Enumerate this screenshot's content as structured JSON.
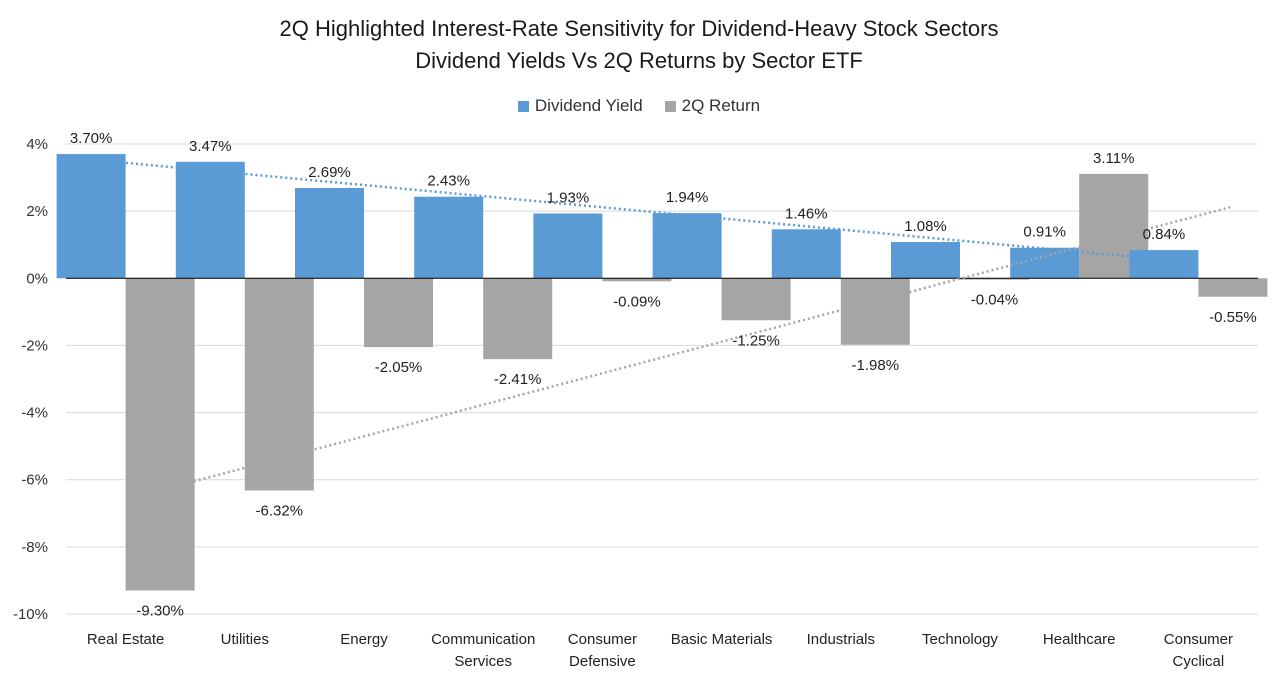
{
  "colors": {
    "dividend": "#5B9BD5",
    "return": "#A5A5A5",
    "grid": "#D9D9D9",
    "axis": "#000000"
  },
  "chart_data": {
    "type": "bar",
    "title": "2Q Highlighted Interest-Rate Sensitivity for Dividend-Heavy Stock Sectors",
    "subtitle": "Dividend Yields Vs 2Q Returns by Sector ETF",
    "categories": [
      [
        "Real Estate"
      ],
      [
        "Utilities"
      ],
      [
        "Energy"
      ],
      [
        "Communication",
        "Services"
      ],
      [
        "Consumer",
        "Defensive"
      ],
      [
        "Basic Materials"
      ],
      [
        "Industrials"
      ],
      [
        "Technology"
      ],
      [
        "Healthcare"
      ],
      [
        "Consumer",
        "Cyclical"
      ]
    ],
    "series": [
      {
        "name": "Dividend Yield",
        "color": "#5B9BD5",
        "values": [
          3.7,
          3.47,
          2.69,
          2.43,
          1.93,
          1.94,
          1.46,
          1.08,
          0.91,
          0.84
        ],
        "labels": [
          "3.70%",
          "3.47%",
          "2.69%",
          "2.43%",
          "1.93%",
          "1.94%",
          "1.46%",
          "1.08%",
          "0.91%",
          "0.84%"
        ]
      },
      {
        "name": "2Q Return",
        "color": "#A5A5A5",
        "values": [
          -9.3,
          -6.32,
          -2.05,
          -2.41,
          -0.09,
          -1.25,
          -1.98,
          -0.04,
          3.11,
          -0.55
        ],
        "labels": [
          "-9.30%",
          "-6.32%",
          "-2.05%",
          "-2.41%",
          "-0.09%",
          "-1.25%",
          "-1.98%",
          "-0.04%",
          "3.11%",
          "-0.55%"
        ]
      }
    ],
    "y_ticks": [
      "4%",
      "2%",
      "0%",
      "-2%",
      "-4%",
      "-6%",
      "-8%",
      "-10%"
    ],
    "ylim": [
      -10,
      4
    ],
    "trendlines": true,
    "grid": true,
    "legend": "top-center"
  }
}
